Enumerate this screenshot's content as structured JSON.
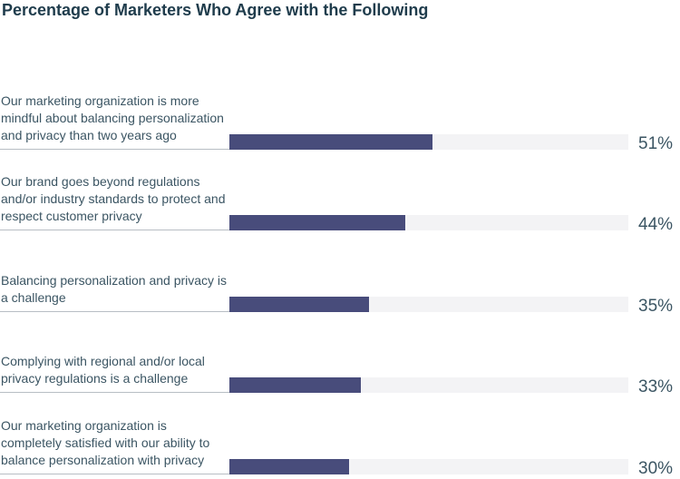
{
  "chart_data": {
    "type": "bar",
    "orientation": "horizontal",
    "title": "Percentage of Marketers Who Agree with the Following",
    "categories": [
      "Our marketing organization is more mindful about balancing personalization and privacy than two years ago",
      "Our brand goes beyond regulations and/or industry standards to protect and respect customer privacy",
      "Balancing personalization and privacy is a challenge",
      "Complying with regional and/or local privacy regulations is a challenge",
      "Our marketing organization is completely satisfied with our ability to balance personalization with privacy"
    ],
    "values": [
      51,
      44,
      35,
      33,
      30
    ],
    "value_labels": [
      "51%",
      "44%",
      "35%",
      "33%",
      "30%"
    ],
    "xlim": [
      0,
      100
    ],
    "bar_color": "#484c7b",
    "track_color": "#f3f3f5"
  }
}
